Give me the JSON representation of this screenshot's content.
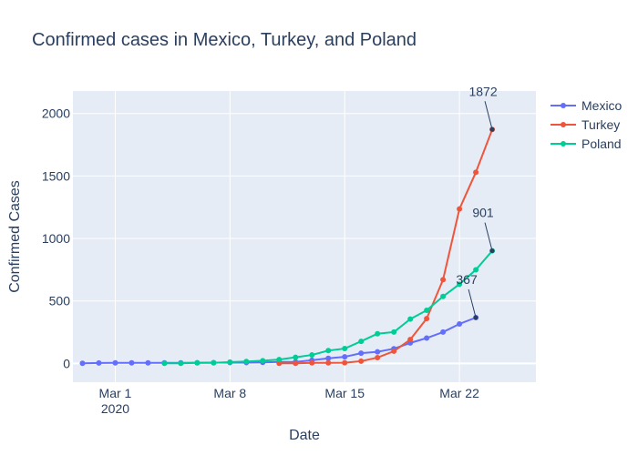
{
  "chart_data": {
    "type": "line",
    "title": "Confirmed cases in Mexico, Turkey, and Poland",
    "xlabel": "Date",
    "ylabel": "Confirmed Cases",
    "x_dates": [
      "2020-02-28",
      "2020-02-29",
      "2020-03-01",
      "2020-03-02",
      "2020-03-03",
      "2020-03-04",
      "2020-03-05",
      "2020-03-06",
      "2020-03-07",
      "2020-03-08",
      "2020-03-09",
      "2020-03-10",
      "2020-03-11",
      "2020-03-12",
      "2020-03-13",
      "2020-03-14",
      "2020-03-15",
      "2020-03-16",
      "2020-03-17",
      "2020-03-18",
      "2020-03-19",
      "2020-03-20",
      "2020-03-21",
      "2020-03-22",
      "2020-03-23",
      "2020-03-24",
      "2020-03-25"
    ],
    "x_range": [
      "2020-02-27T10:00",
      "2020-03-26T16:00"
    ],
    "ylim": [
      -150,
      2180
    ],
    "x_ticks": [
      {
        "date": "2020-03-01",
        "label": "Mar 1",
        "sublabel": "2020"
      },
      {
        "date": "2020-03-08",
        "label": "Mar 8",
        "sublabel": ""
      },
      {
        "date": "2020-03-15",
        "label": "Mar 15",
        "sublabel": ""
      },
      {
        "date": "2020-03-22",
        "label": "Mar 22",
        "sublabel": ""
      }
    ],
    "y_ticks": [
      0,
      500,
      1000,
      1500,
      2000
    ],
    "grid": true,
    "legend_position": "top-right",
    "series": [
      {
        "name": "Mexico",
        "color": "#636efa",
        "start_date": "2020-02-28",
        "values": [
          1,
          4,
          5,
          5,
          5,
          5,
          5,
          6,
          7,
          7,
          7,
          8,
          12,
          12,
          26,
          41,
          53,
          82,
          93,
          118,
          164,
          203,
          251,
          316,
          367
        ]
      },
      {
        "name": "Turkey",
        "color": "#ef553b",
        "start_date": "2020-03-11",
        "values": [
          1,
          1,
          5,
          5,
          6,
          18,
          47,
          98,
          191,
          359,
          670,
          1236,
          1529,
          1872
        ]
      },
      {
        "name": "Poland",
        "color": "#00cc96",
        "start_date": "2020-03-04",
        "values": [
          1,
          1,
          5,
          5,
          11,
          16,
          22,
          31,
          49,
          68,
          103,
          119,
          177,
          238,
          251,
          355,
          425,
          536,
          634,
          749,
          901
        ]
      }
    ],
    "annotations": [
      {
        "series": "Turkey",
        "text": "1872"
      },
      {
        "series": "Poland",
        "text": "901"
      },
      {
        "series": "Mexico",
        "text": "367"
      }
    ]
  }
}
